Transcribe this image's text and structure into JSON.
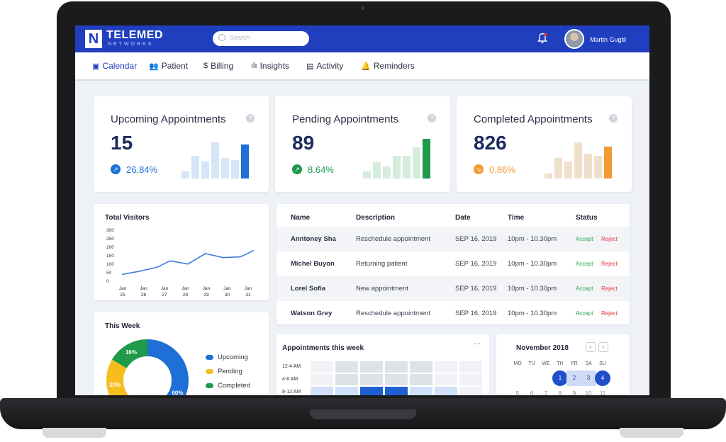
{
  "app": {
    "brand_mark": "N",
    "brand_name": "TELEMED",
    "brand_sub": "NETWORKS",
    "search_placeholder": "Search",
    "user_name": "Martin Gugtil",
    "colors": {
      "brand": "#1f3fbf",
      "blue": "#1e6fd6",
      "green": "#1e9a4a",
      "orange": "#f59a32"
    }
  },
  "nav": {
    "items": [
      {
        "label": "Calendar",
        "icon": "calendar-icon",
        "glyph": "▣",
        "active": true
      },
      {
        "label": "Patient",
        "icon": "patient-icon",
        "glyph": "👥",
        "active": false
      },
      {
        "label": "Billing",
        "icon": "billing-icon",
        "glyph": "$",
        "active": false
      },
      {
        "label": "Insights",
        "icon": "insights-icon",
        "glyph": "ılı",
        "active": false
      },
      {
        "label": "Activity",
        "icon": "activity-icon",
        "glyph": "▤",
        "active": false
      },
      {
        "label": "Reminders",
        "icon": "reminders-icon",
        "glyph": "🔔",
        "active": false
      }
    ]
  },
  "stats": [
    {
      "title": "Upcoming Appointments",
      "value": "15",
      "change": "26.84%",
      "arrow": "↗",
      "color": "#1e6fd6",
      "light": "#d6e5f8",
      "bars": [
        0.18,
        0.55,
        0.42,
        0.88,
        0.5,
        0.45,
        0.83
      ]
    },
    {
      "title": "Pending Appointments",
      "value": "89",
      "change": "8.64%",
      "arrow": "↗",
      "color": "#1e9a4a",
      "light": "#d6ecdc",
      "bars": [
        0.18,
        0.4,
        0.3,
        0.55,
        0.55,
        0.75,
        0.97
      ]
    },
    {
      "title": "Completed Appointments",
      "value": "826",
      "change": "0.86%",
      "arrow": "↘",
      "color": "#f59a32",
      "light": "#f0dfcb",
      "bars": [
        0.12,
        0.5,
        0.42,
        0.88,
        0.6,
        0.55,
        0.78
      ]
    }
  ],
  "help_glyph": "?",
  "visitors": {
    "title": "Total Visitors",
    "y_ticks": [
      "300",
      "250",
      "200",
      "150",
      "100",
      "50",
      "0"
    ],
    "x_ticks": [
      [
        "Jan",
        "25"
      ],
      [
        "Jan",
        "26"
      ],
      [
        "Jan",
        "27"
      ],
      [
        "Jan",
        "28"
      ],
      [
        "Jan",
        "29"
      ],
      [
        "Jan",
        "30"
      ],
      [
        "Jan",
        "31"
      ]
    ]
  },
  "chart_data": {
    "type": "line",
    "title": "Total Visitors",
    "categories": [
      "Jan 25",
      "Jan 26",
      "Jan 27",
      "Jan 28",
      "Jan 29",
      "Jan 30",
      "Jan 31"
    ],
    "x": [
      25,
      25.8,
      26.6,
      27.2,
      28,
      28.8,
      29.6,
      30.4,
      31
    ],
    "values": [
      20,
      40,
      65,
      105,
      85,
      150,
      125,
      130,
      170
    ],
    "ylim": [
      0,
      300
    ]
  },
  "appointments_table": {
    "headers": [
      "Name",
      "Description",
      "Date",
      "Time",
      "Status"
    ],
    "rows": [
      {
        "name": "Anntoney Sha",
        "desc": "Reschedule appointment",
        "date": "SEP 16, 2019",
        "time": "10pm - 10.30pm",
        "accept": "Accept",
        "reject": "Reject"
      },
      {
        "name": "Michel Buyon",
        "desc": "Returning patient",
        "date": "SEP 16, 2019",
        "time": "10pm - 10.30pm",
        "accept": "Accept",
        "reject": "Reject"
      },
      {
        "name": "Lorel Sofia",
        "desc": "New appointment",
        "date": "SEP 16, 2019",
        "time": "10pm - 10.30pm",
        "accept": "Accept",
        "reject": "Reject"
      },
      {
        "name": "Watson Grey",
        "desc": "Reschedule appointment",
        "date": "SEP 16, 2019",
        "time": "10pm - 10.30pm",
        "accept": "Accept",
        "reject": "Reject"
      }
    ]
  },
  "this_week": {
    "title": "This Week",
    "segments": [
      {
        "label": "Upcoming",
        "value": 60,
        "text": "60%",
        "color": "#1e6fd6"
      },
      {
        "label": "Pending",
        "value": 20,
        "text": "20%",
        "color": "#f5bd1e"
      },
      {
        "label": "Completed",
        "value": 16,
        "text": "16%",
        "color": "#1e9a4a"
      }
    ]
  },
  "heatmap": {
    "title": "Appointments this week",
    "menu": "···",
    "rows": [
      {
        "label": "12-4 AM",
        "cells": [
          0.05,
          0.25,
          0.25,
          0.25,
          0.25,
          0.05,
          0.05
        ]
      },
      {
        "label": "4-8 AM",
        "cells": [
          0.05,
          0.25,
          0.25,
          0.55,
          0.25,
          0.05,
          0.05
        ]
      },
      {
        "label": "8-12 AM",
        "cells": [
          0.3,
          0.35,
          1.0,
          1.0,
          0.3,
          0.3,
          0.05
        ]
      }
    ]
  },
  "calendar": {
    "title": "November 2018",
    "prev": "‹",
    "next": "›",
    "dow": [
      "MO",
      "TU",
      "WE",
      "TH",
      "FR",
      "SA",
      "SU"
    ],
    "week1": [
      "",
      "",
      "",
      "1",
      "2",
      "3",
      "4"
    ],
    "week2": [
      "5",
      "6",
      "7",
      "8",
      "9",
      "10",
      "11"
    ]
  }
}
